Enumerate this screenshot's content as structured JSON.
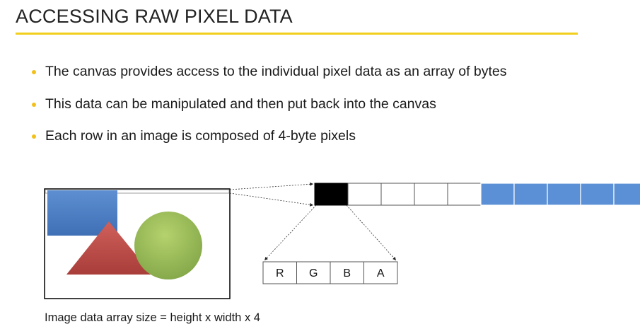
{
  "slide": {
    "title": "ACCESSING RAW PIXEL DATA",
    "accent_color": "#f2cf1d",
    "bullets": [
      "The canvas provides access to the individual pixel data as an array of bytes",
      "This data can be manipulated and then put back into the canvas",
      "Each row in an image is composed of 4-byte pixels"
    ],
    "diagram": {
      "pixel_colors": [
        "#000000",
        "#ffffff",
        "#ffffff",
        "#ffffff",
        "#ffffff",
        "#5b8fd6",
        "#5b8fd6",
        "#5b8fd6",
        "#5b8fd6",
        "#5b8fd6"
      ],
      "channels": [
        "R",
        "G",
        "B",
        "A"
      ],
      "shape_colors": {
        "rectangle": "#4f7fc4",
        "triangle": "#c0504d",
        "circle": "#9bbb59"
      }
    },
    "caption": "Image data array size = height x width x 4"
  }
}
